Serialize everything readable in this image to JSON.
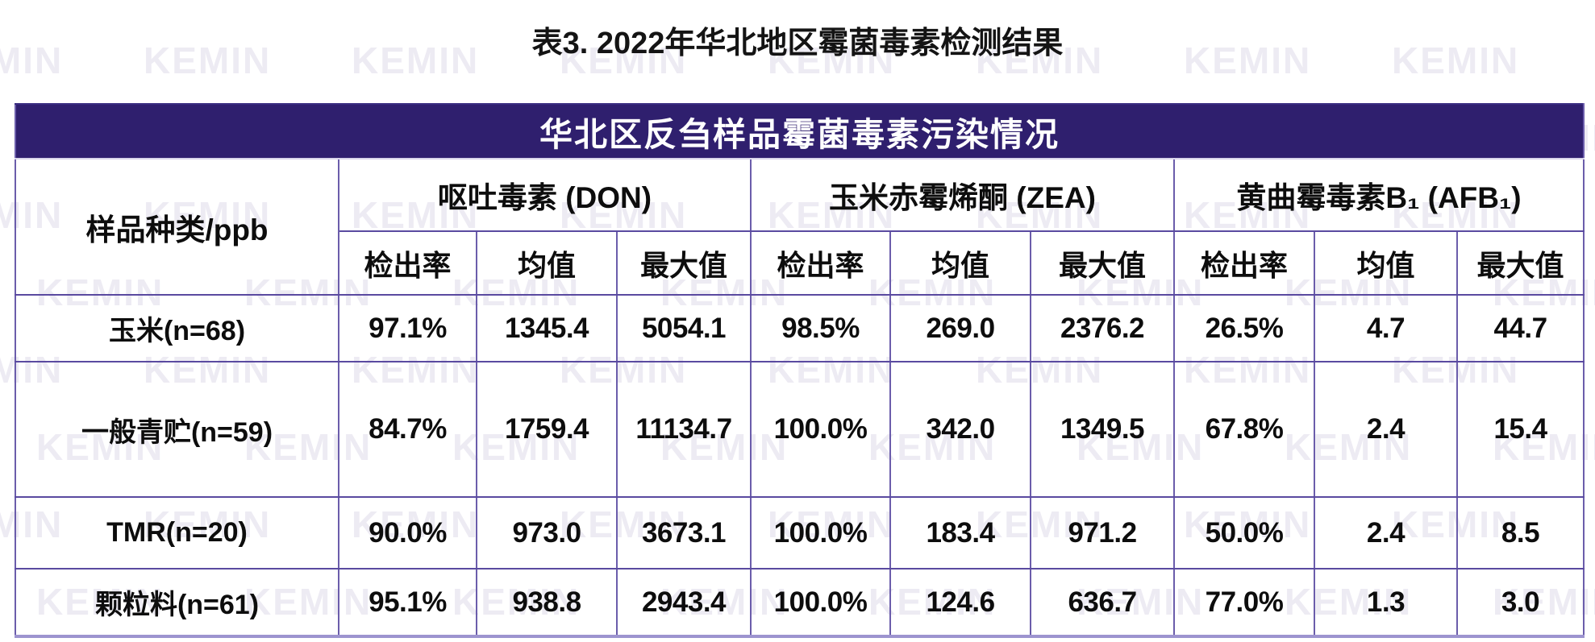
{
  "page": {
    "title": "表3. 2022年华北地区霉菌毒素检测结果"
  },
  "table": {
    "banner": "华北区反刍样品霉菌毒素污染情况",
    "corner_label": "样品种类/ppb",
    "groups": [
      "呕吐毒素 (DON)",
      "玉米赤霉烯酮 (ZEA)",
      "黄曲霉毒素B₁ (AFB₁)"
    ],
    "sub_headers": [
      "检出率",
      "均值",
      "最大值"
    ],
    "rows": [
      {
        "label": "玉米(n=68)",
        "values": [
          "97.1%",
          "1345.4",
          "5054.1",
          "98.5%",
          "269.0",
          "2376.2",
          "26.5%",
          "4.7",
          "44.7"
        ]
      },
      {
        "label": "一般青贮(n=59)",
        "values": [
          "84.7%",
          "1759.4",
          "11134.7",
          "100.0%",
          "342.0",
          "1349.5",
          "67.8%",
          "2.4",
          "15.4"
        ]
      },
      {
        "label": "TMR(n=20)",
        "values": [
          "90.0%",
          "973.0",
          "3673.1",
          "100.0%",
          "183.4",
          "971.2",
          "50.0%",
          "2.4",
          "8.5"
        ]
      },
      {
        "label": "颗粒料(n=61)",
        "values": [
          "95.1%",
          "938.8",
          "2943.4",
          "100.0%",
          "124.6",
          "636.7",
          "77.0%",
          "1.3",
          "3.0"
        ]
      }
    ]
  },
  "watermark": {
    "text": "KEMIN"
  },
  "colors": {
    "banner_bg": "#2f1f6e",
    "banner_text": "#ffffff",
    "border": "#5a4aa0",
    "border_light": "#9d94cf",
    "watermark": "#edebf3",
    "text": "#0d0d0d"
  },
  "chart_data": {
    "type": "table",
    "title": "表3. 2022年华北地区霉菌毒素检测结果",
    "table_banner": "华北区反刍样品霉菌毒素污染情况",
    "unit": "ppb",
    "column_groups": [
      "呕吐毒素 (DON)",
      "玉米赤霉烯酮 (ZEA)",
      "黄曲霉毒素B₁ (AFB₁)"
    ],
    "columns": [
      "样品种类/ppb",
      "DON 检出率",
      "DON 均值",
      "DON 最大值",
      "ZEA 检出率",
      "ZEA 均值",
      "ZEA 最大值",
      "AFB₁ 检出率",
      "AFB₁ 均值",
      "AFB₁ 最大值"
    ],
    "rows": [
      [
        "玉米(n=68)",
        "97.1%",
        1345.4,
        5054.1,
        "98.5%",
        269.0,
        2376.2,
        "26.5%",
        4.7,
        44.7
      ],
      [
        "一般青贮(n=59)",
        "84.7%",
        1759.4,
        11134.7,
        "100.0%",
        342.0,
        1349.5,
        "67.8%",
        2.4,
        15.4
      ],
      [
        "TMR(n=20)",
        "90.0%",
        973.0,
        3673.1,
        "100.0%",
        183.4,
        971.2,
        "50.0%",
        2.4,
        8.5
      ],
      [
        "颗粒料(n=61)",
        "95.1%",
        938.8,
        2943.4,
        "100.0%",
        124.6,
        636.7,
        "77.0%",
        1.3,
        3.0
      ]
    ]
  }
}
